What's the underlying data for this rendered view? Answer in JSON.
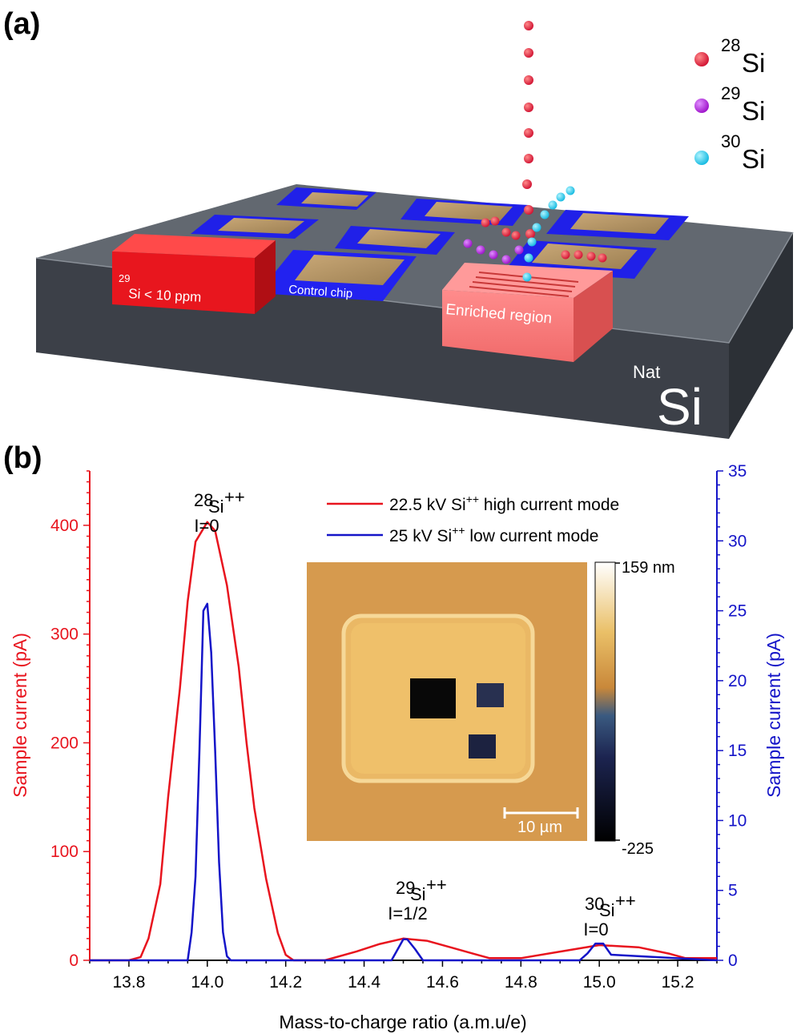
{
  "panel_a": {
    "label": "(a)",
    "legend": [
      {
        "mass": "28",
        "element": "Si",
        "color": "#e0203a"
      },
      {
        "mass": "29",
        "element": "Si",
        "color": "#b020d8"
      },
      {
        "mass": "30",
        "element": "Si",
        "color": "#20c8e8"
      }
    ],
    "red_block_sup": "29",
    "red_block_text": "Si < 10 ppm",
    "control_chip": "Control chip",
    "enriched_region": "Enriched region",
    "substrate_sup": "Nat",
    "substrate_text": "Si"
  },
  "panel_b": {
    "label": "(b)",
    "inset": {
      "colorbar_max": "159 nm",
      "colorbar_min": "-225",
      "scalebar": "10 µm"
    },
    "peak_labels": [
      {
        "mass": "28",
        "ion": "Si",
        "charge": "++",
        "spin": "I=0"
      },
      {
        "mass": "29",
        "ion": "Si",
        "charge": "++",
        "spin": "I=1/2"
      },
      {
        "mass": "30",
        "ion": "Si",
        "charge": "++",
        "spin": "I=0"
      }
    ]
  },
  "chart_data": {
    "type": "line",
    "xlabel": "Mass-to-charge ratio (a.m.u/e)",
    "ylabel": "Sample current (pA)",
    "y2label": "Sample current (pA)",
    "xlim": [
      13.7,
      15.3
    ],
    "ylim": [
      0,
      450
    ],
    "y2lim": [
      0,
      35
    ],
    "xticks": [
      "13.8",
      "14.0",
      "14.2",
      "14.4",
      "14.6",
      "14.8",
      "15.0",
      "15.2"
    ],
    "yticks": [
      "0",
      "100",
      "200",
      "300",
      "400"
    ],
    "y2ticks": [
      "0",
      "5",
      "10",
      "15",
      "20",
      "25",
      "30",
      "35"
    ],
    "legend_position": "top-right",
    "series": [
      {
        "name": "22.5 kV Si++ high current mode",
        "legend_main": "22.5 kV Si",
        "legend_sup": "++",
        "legend_rest": " high current mode",
        "color": "#e8141e",
        "axis": "left",
        "x": [
          13.7,
          13.8,
          13.83,
          13.85,
          13.88,
          13.9,
          13.93,
          13.95,
          13.97,
          14.0,
          14.02,
          14.05,
          14.08,
          14.1,
          14.12,
          14.15,
          14.18,
          14.2,
          14.22,
          14.3,
          14.38,
          14.44,
          14.5,
          14.56,
          14.62,
          14.68,
          14.72,
          14.8,
          14.9,
          15.0,
          15.1,
          15.18,
          15.22,
          15.3
        ],
        "y": [
          0,
          0,
          3,
          20,
          70,
          150,
          250,
          330,
          385,
          403,
          395,
          345,
          270,
          200,
          140,
          75,
          25,
          5,
          0,
          0,
          8,
          15,
          20,
          18,
          12,
          6,
          2,
          2,
          8,
          14,
          12,
          6,
          2,
          2
        ]
      },
      {
        "name": "25 kV Si++ low current mode",
        "legend_main": "25 kV Si",
        "legend_sup": "++",
        "legend_rest": " low current mode",
        "color": "#1414c8",
        "axis": "right",
        "x": [
          13.7,
          13.95,
          13.96,
          13.97,
          13.98,
          13.99,
          14.0,
          14.01,
          14.02,
          14.03,
          14.04,
          14.05,
          14.06,
          14.1,
          14.47,
          14.49,
          14.5,
          14.51,
          14.53,
          14.55,
          14.95,
          14.97,
          14.99,
          15.01,
          15.03,
          15.3
        ],
        "y": [
          0,
          0,
          2,
          6,
          15,
          25,
          25.5,
          22,
          15,
          7,
          2,
          0.3,
          0,
          0,
          0,
          1,
          1.5,
          1.5,
          0.8,
          0,
          0,
          0.5,
          1.2,
          1.2,
          0.4,
          0
        ]
      }
    ]
  }
}
